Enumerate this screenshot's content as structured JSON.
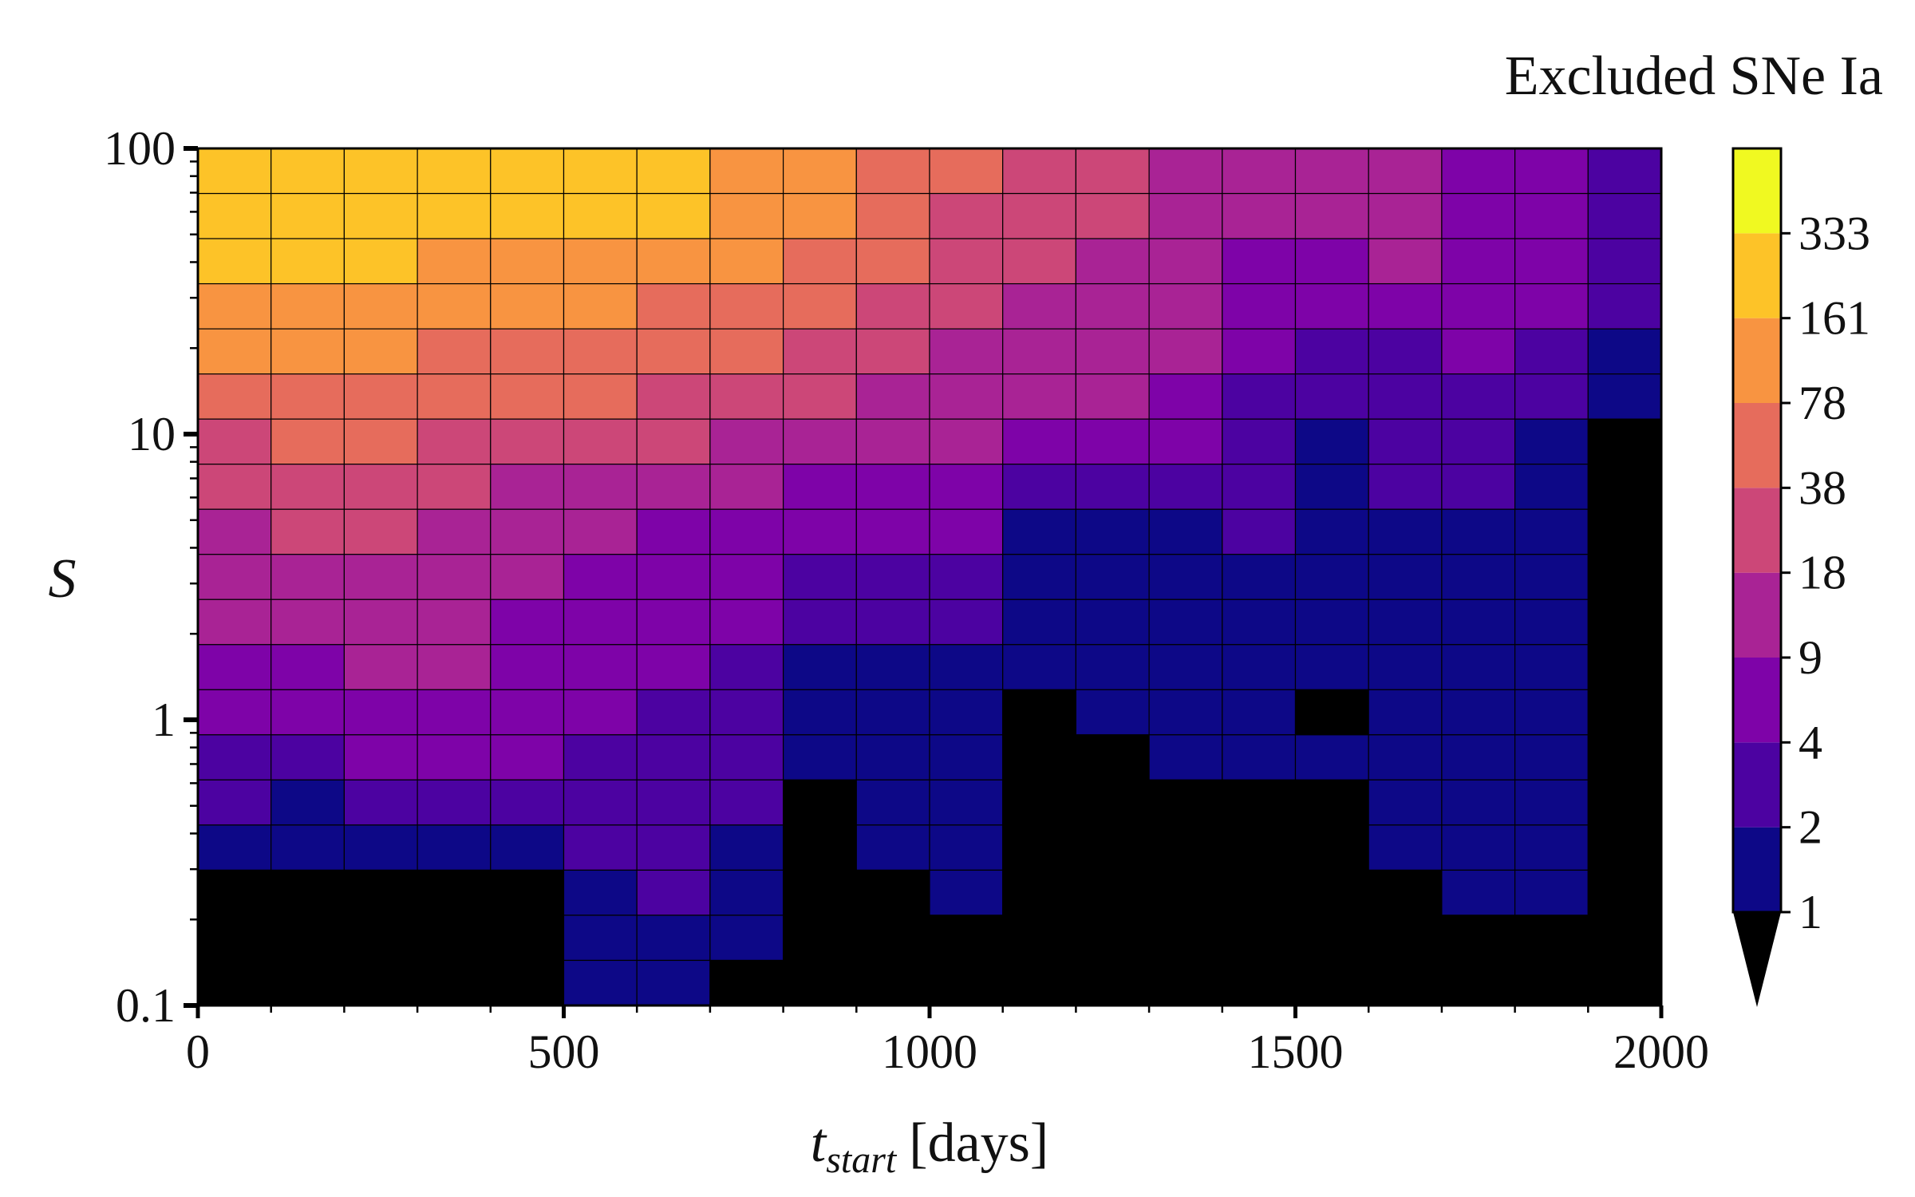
{
  "chart_data": {
    "type": "heatmap",
    "title": "",
    "xlabel": "t",
    "xlabel_sub": "start",
    "xlabel_unit": "[days]",
    "ylabel": "S",
    "x_scale": "linear",
    "y_scale": "log",
    "xlim": [
      0,
      2000
    ],
    "ylim": [
      0.1,
      100
    ],
    "xticks": [
      0,
      500,
      1000,
      1500,
      2000
    ],
    "xtick_labels": [
      "0",
      "500",
      "1000",
      "1500",
      "2000"
    ],
    "yticks": [
      0.1,
      1,
      10,
      100
    ],
    "ytick_labels": [
      "0.1",
      "1",
      "10",
      "100"
    ],
    "x_bin_edges": [
      0,
      100,
      200,
      300,
      400,
      500,
      600,
      700,
      800,
      900,
      1000,
      1100,
      1200,
      1300,
      1400,
      1500,
      1600,
      1700,
      1800,
      1900,
      2000
    ],
    "y_bin_count": 19,
    "y_bin_range": [
      0.1,
      100
    ],
    "colorbar": {
      "title": "Excluded SNe Ia",
      "boundaries": [
        1,
        2,
        4,
        9,
        18,
        38,
        78,
        161,
        333
      ],
      "tick_labels": [
        "1",
        "2",
        "4",
        "9",
        "18",
        "38",
        "78",
        "161",
        "333"
      ],
      "colors": [
        "#0d0887",
        "#4c02a1",
        "#7e03a8",
        "#a92395",
        "#cc4778",
        "#e66c5c",
        "#f89441",
        "#fdc328",
        "#f0f921"
      ],
      "under_color": "#000000",
      "extend": "min"
    },
    "grid_lines": false,
    "legend": "colorbar-right",
    "cell_levels_top_to_bottom": [
      [
        8,
        8,
        8,
        8,
        8,
        8,
        8,
        7,
        7,
        6,
        6,
        5,
        5,
        4,
        4,
        4,
        4,
        3,
        3,
        2
      ],
      [
        8,
        8,
        8,
        8,
        8,
        8,
        8,
        7,
        7,
        6,
        5,
        5,
        5,
        4,
        4,
        4,
        4,
        3,
        3,
        2
      ],
      [
        8,
        8,
        8,
        7,
        7,
        7,
        7,
        7,
        6,
        6,
        5,
        5,
        4,
        4,
        3,
        3,
        4,
        3,
        3,
        2
      ],
      [
        7,
        7,
        7,
        7,
        7,
        7,
        6,
        6,
        6,
        5,
        5,
        4,
        4,
        4,
        3,
        3,
        3,
        3,
        3,
        2
      ],
      [
        7,
        7,
        7,
        6,
        6,
        6,
        6,
        6,
        5,
        5,
        4,
        4,
        4,
        4,
        3,
        2,
        2,
        3,
        2,
        1
      ],
      [
        6,
        6,
        6,
        6,
        6,
        6,
        5,
        5,
        5,
        4,
        4,
        4,
        4,
        3,
        2,
        2,
        2,
        2,
        2,
        1
      ],
      [
        5,
        6,
        6,
        5,
        5,
        5,
        5,
        4,
        4,
        4,
        4,
        3,
        3,
        3,
        2,
        1,
        2,
        2,
        1,
        0
      ],
      [
        5,
        5,
        5,
        5,
        4,
        4,
        4,
        4,
        3,
        3,
        3,
        2,
        2,
        2,
        2,
        1,
        2,
        2,
        1,
        0
      ],
      [
        4,
        5,
        5,
        4,
        4,
        4,
        3,
        3,
        3,
        3,
        3,
        1,
        1,
        1,
        2,
        1,
        1,
        1,
        1,
        0
      ],
      [
        4,
        4,
        4,
        4,
        4,
        3,
        3,
        3,
        2,
        2,
        2,
        1,
        1,
        1,
        1,
        1,
        1,
        1,
        1,
        0
      ],
      [
        4,
        4,
        4,
        4,
        3,
        3,
        3,
        3,
        2,
        2,
        2,
        1,
        1,
        1,
        1,
        1,
        1,
        1,
        1,
        0
      ],
      [
        3,
        3,
        4,
        4,
        3,
        3,
        3,
        2,
        1,
        1,
        1,
        1,
        1,
        1,
        1,
        1,
        1,
        1,
        1,
        0
      ],
      [
        3,
        3,
        3,
        3,
        3,
        3,
        2,
        2,
        1,
        1,
        1,
        0,
        1,
        1,
        1,
        0,
        1,
        1,
        1,
        0
      ],
      [
        2,
        2,
        3,
        3,
        3,
        2,
        2,
        2,
        1,
        1,
        1,
        0,
        0,
        1,
        1,
        1,
        1,
        1,
        1,
        0
      ],
      [
        2,
        1,
        2,
        2,
        2,
        2,
        2,
        2,
        0,
        1,
        1,
        0,
        0,
        0,
        0,
        0,
        1,
        1,
        1,
        0
      ],
      [
        1,
        1,
        1,
        1,
        1,
        2,
        2,
        1,
        0,
        1,
        1,
        0,
        0,
        0,
        0,
        0,
        1,
        1,
        1,
        0
      ],
      [
        0,
        0,
        0,
        0,
        0,
        1,
        2,
        1,
        0,
        0,
        1,
        0,
        0,
        0,
        0,
        0,
        0,
        1,
        1,
        0
      ],
      [
        0,
        0,
        0,
        0,
        0,
        1,
        1,
        1,
        0,
        0,
        0,
        0,
        0,
        0,
        0,
        0,
        0,
        0,
        0,
        0
      ],
      [
        0,
        0,
        0,
        0,
        0,
        1,
        1,
        0,
        0,
        0,
        0,
        0,
        0,
        0,
        0,
        0,
        0,
        0,
        0,
        0
      ]
    ]
  }
}
